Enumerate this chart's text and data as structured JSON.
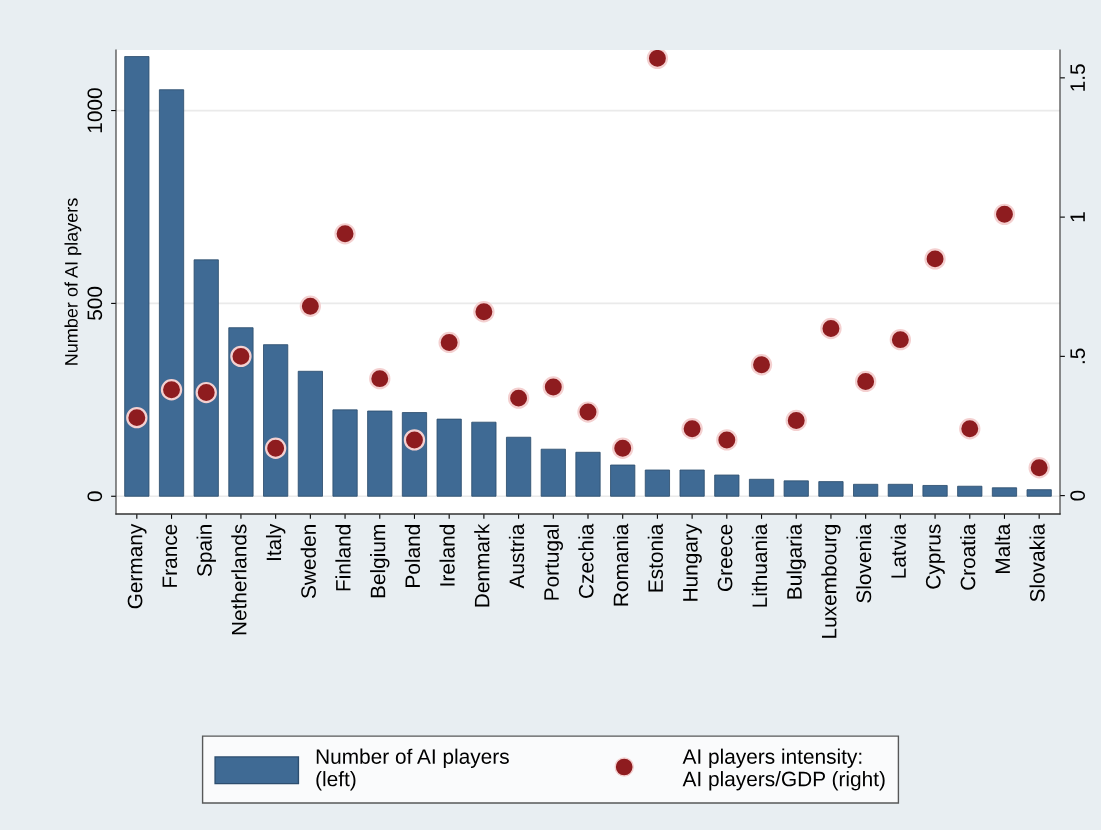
{
  "chart_data": {
    "type": "bar",
    "ylabel": "Number of AI players",
    "categories": [
      "Germany",
      "France",
      "Spain",
      "Netherlands",
      "Italy",
      "Sweden",
      "Finland",
      "Belgium",
      "Poland",
      "Ireland",
      "Denmark",
      "Austria",
      "Portugal",
      "Czechia",
      "Romania",
      "Estonia",
      "Hungary",
      "Greece",
      "Lithuania",
      "Bulgaria",
      "Luxembourg",
      "Slovenia",
      "Latvia",
      "Cyprus",
      "Croatia",
      "Malta",
      "Slovakia"
    ],
    "series": [
      {
        "name": "Number of AI players\n(left)",
        "color": "#3f6a94",
        "values": [
          1140,
          1054,
          613,
          437,
          393,
          324,
          224,
          221,
          217,
          200,
          192,
          153,
          122,
          114,
          81,
          68,
          68,
          55,
          44,
          40,
          38,
          31,
          31,
          28,
          26,
          22,
          17
        ]
      },
      {
        "name": "AI players intensity:\nAI players/GDP (right)",
        "type": "scatter",
        "axis": "y2",
        "marker": "circle",
        "color": "#8e1c1f",
        "values": [
          0.28,
          0.38,
          0.37,
          0.5,
          0.17,
          0.68,
          0.94,
          0.42,
          0.2,
          0.55,
          0.66,
          0.35,
          0.39,
          0.3,
          0.17,
          1.57,
          0.24,
          0.2,
          0.47,
          0.27,
          0.6,
          0.41,
          0.56,
          0.85,
          0.24,
          1.01,
          0.1
        ]
      }
    ],
    "ylim": [
      -46,
      1157
    ],
    "yticks": [
      0,
      500,
      1000
    ],
    "y2lim": [
      -0.066,
      1.6
    ],
    "y2ticks": [
      0,
      {
        "value": 0.5,
        "label": ".5"
      },
      1,
      1.5
    ],
    "grid": "y",
    "legend": "bottom"
  }
}
